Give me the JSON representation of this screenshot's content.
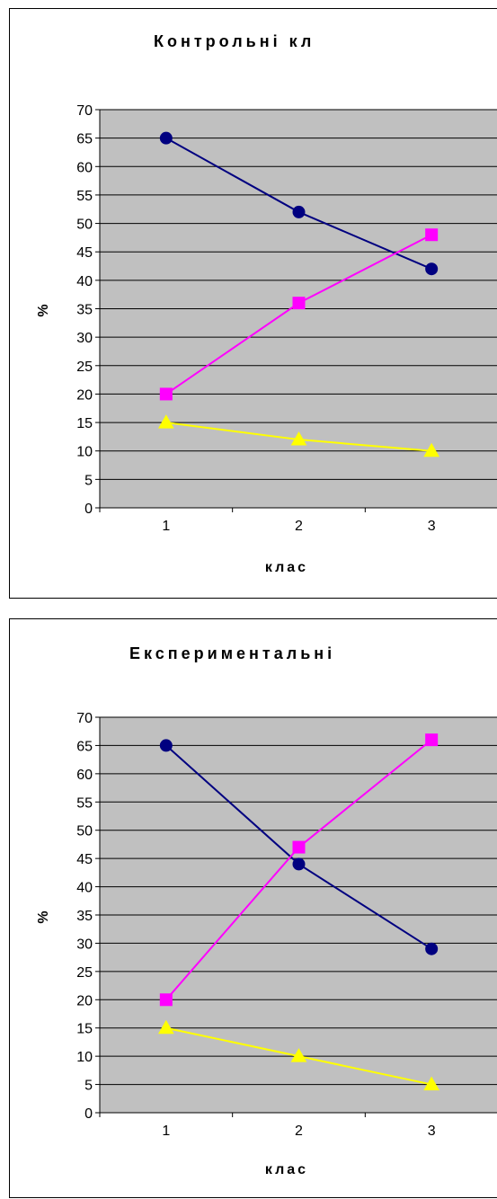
{
  "chart_data": [
    {
      "type": "line",
      "title": "Контрольні кл",
      "xlabel": "клас",
      "ylabel": "%",
      "categories": [
        "1",
        "2",
        "3"
      ],
      "ylim": [
        0,
        70
      ],
      "ytick_step": 5,
      "grid": true,
      "plot_background": "#c0c0c0",
      "series": [
        {
          "values": [
            65,
            52,
            42
          ],
          "color": "#000080",
          "marker": "circle"
        },
        {
          "values": [
            20,
            36,
            48
          ],
          "color": "#ff00ff",
          "marker": "square"
        },
        {
          "values": [
            15,
            12,
            10
          ],
          "color": "#ffff00",
          "marker": "triangle"
        }
      ]
    },
    {
      "type": "line",
      "title": "Експериментальні",
      "xlabel": "клас",
      "ylabel": "%",
      "categories": [
        "1",
        "2",
        "3"
      ],
      "ylim": [
        0,
        70
      ],
      "ytick_step": 5,
      "grid": true,
      "plot_background": "#c0c0c0",
      "series": [
        {
          "values": [
            65,
            44,
            29
          ],
          "color": "#000080",
          "marker": "circle"
        },
        {
          "values": [
            20,
            47,
            66
          ],
          "color": "#ff00ff",
          "marker": "square"
        },
        {
          "values": [
            15,
            10,
            5
          ],
          "color": "#ffff00",
          "marker": "triangle"
        }
      ]
    }
  ]
}
